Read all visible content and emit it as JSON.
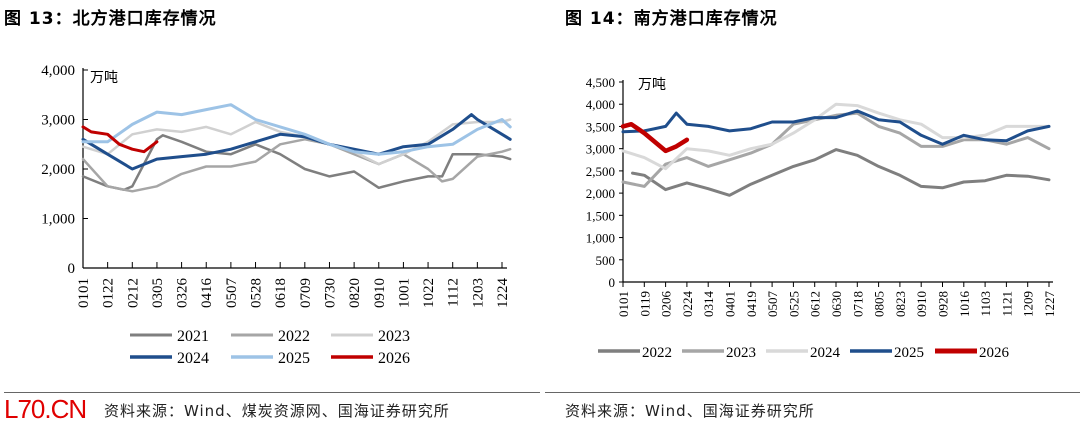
{
  "left": {
    "title": "图 13：北方港口库存情况",
    "source": "资料来源：Wind、煤炭资源网、国海证券研究所",
    "watermark": "L70.CN"
  },
  "right": {
    "title": "图 14：南方港口库存情况",
    "source": "资料来源：Wind、国海证券研究所"
  },
  "chart_data": [
    {
      "type": "line",
      "title": "图 13：北方港口库存情况",
      "unit": "万吨",
      "ylim": [
        0,
        4000
      ],
      "yticks": [
        0,
        1000,
        2000,
        3000,
        4000
      ],
      "ytick_labels": [
        "0",
        "1,000",
        "2,000",
        "3,000",
        "4,000"
      ],
      "xticks": [
        "0101",
        "0122",
        "0212",
        "0305",
        "0326",
        "0416",
        "0507",
        "0528",
        "0618",
        "0709",
        "0730",
        "0820",
        "0910",
        "1001",
        "1022",
        "1112",
        "1203",
        "1224"
      ],
      "grid": false,
      "legend": "bottom",
      "series": [
        {
          "name": "2021",
          "color": "#7f7f7f",
          "x": [
            "0101",
            "0122",
            "0205",
            "0212",
            "0305",
            "0310",
            "0326",
            "0416",
            "0507",
            "0528",
            "0618",
            "0709",
            "0730",
            "0820",
            "0910",
            "1001",
            "1022",
            "1103",
            "1112",
            "1203",
            "1224",
            "1231"
          ],
          "y": [
            1850,
            1650,
            1580,
            1650,
            2600,
            2680,
            2550,
            2350,
            2300,
            2500,
            2300,
            2000,
            1850,
            1950,
            1620,
            1750,
            1850,
            1850,
            2300,
            2300,
            2250,
            2200
          ]
        },
        {
          "name": "2022",
          "color": "#a6a6a6",
          "x": [
            "0101",
            "0122",
            "0212",
            "0305",
            "0326",
            "0416",
            "0507",
            "0528",
            "0618",
            "0709",
            "0730",
            "0820",
            "0910",
            "1001",
            "1022",
            "1103",
            "1112",
            "1203",
            "1224",
            "1231"
          ],
          "y": [
            2200,
            1650,
            1550,
            1650,
            1900,
            2050,
            2050,
            2150,
            2500,
            2600,
            2500,
            2300,
            2100,
            2300,
            2000,
            1750,
            1800,
            2250,
            2350,
            2400
          ]
        },
        {
          "name": "2023",
          "color": "#d0d0d0",
          "x": [
            "0101",
            "0122",
            "0212",
            "0305",
            "0326",
            "0416",
            "0507",
            "0528",
            "0618",
            "0709",
            "0730",
            "0820",
            "0910",
            "1001",
            "1022",
            "1112",
            "1203",
            "1224",
            "1231"
          ],
          "y": [
            2450,
            2300,
            2700,
            2800,
            2750,
            2850,
            2700,
            2950,
            2750,
            2650,
            2500,
            2350,
            2100,
            2300,
            2550,
            2900,
            2950,
            2950,
            3000
          ]
        },
        {
          "name": "2024",
          "color": "#1f4e8c",
          "x": [
            "0101",
            "0122",
            "0212",
            "0305",
            "0326",
            "0416",
            "0507",
            "0528",
            "0618",
            "0709",
            "0730",
            "0820",
            "0910",
            "1001",
            "1022",
            "1112",
            "1128",
            "1203",
            "1224",
            "1231"
          ],
          "y": [
            2600,
            2300,
            2000,
            2200,
            2250,
            2300,
            2400,
            2550,
            2700,
            2650,
            2500,
            2400,
            2300,
            2450,
            2500,
            2800,
            3100,
            3000,
            2700,
            2600
          ]
        },
        {
          "name": "2025",
          "color": "#9dc3e6",
          "x": [
            "0101",
            "0122",
            "0212",
            "0305",
            "0326",
            "0416",
            "0507",
            "0528",
            "0618",
            "0709",
            "0730",
            "0820",
            "0910",
            "1001",
            "1022",
            "1112",
            "1203",
            "1224",
            "1231"
          ],
          "y": [
            2550,
            2550,
            2900,
            3150,
            3100,
            3200,
            3300,
            3000,
            2850,
            2700,
            2500,
            2350,
            2300,
            2350,
            2450,
            2500,
            2800,
            3000,
            2850
          ]
        },
        {
          "name": "2026",
          "color": "#c00000",
          "x": [
            "0101",
            "0108",
            "0122",
            "0201",
            "0212",
            "0222",
            "0305"
          ],
          "y": [
            2850,
            2750,
            2700,
            2500,
            2400,
            2350,
            2550
          ]
        }
      ]
    },
    {
      "type": "line",
      "title": "图 14：南方港口库存情况",
      "unit": "万吨",
      "ylim": [
        0,
        4500
      ],
      "yticks": [
        0,
        500,
        1000,
        1500,
        2000,
        2500,
        3000,
        3500,
        4000,
        4500
      ],
      "ytick_labels": [
        "0",
        "500",
        "1,000",
        "1,500",
        "2,000",
        "2,500",
        "3,000",
        "3,500",
        "4,000",
        "4,500"
      ],
      "xticks": [
        "0101",
        "0119",
        "0206",
        "0224",
        "0314",
        "0401",
        "0419",
        "0507",
        "0525",
        "0612",
        "0630",
        "0718",
        "0805",
        "0823",
        "0910",
        "0928",
        "1016",
        "1103",
        "1121",
        "1209",
        "1227"
      ],
      "grid": false,
      "legend": "bottom",
      "series": [
        {
          "name": "2022",
          "color": "#7f7f7f",
          "x": [
            "0109",
            "0119",
            "0206",
            "0224",
            "0314",
            "0401",
            "0419",
            "0507",
            "0525",
            "0612",
            "0630",
            "0718",
            "0805",
            "0823",
            "0910",
            "0928",
            "1016",
            "1103",
            "1121",
            "1209",
            "1227"
          ],
          "y": [
            2450,
            2400,
            2080,
            2230,
            2100,
            1950,
            2200,
            2400,
            2600,
            2750,
            2980,
            2850,
            2600,
            2400,
            2150,
            2120,
            2250,
            2280,
            2400,
            2380,
            2300
          ]
        },
        {
          "name": "2023",
          "color": "#a6a6a6",
          "x": [
            "0101",
            "0119",
            "0206",
            "0224",
            "0314",
            "0401",
            "0419",
            "0507",
            "0525",
            "0612",
            "0630",
            "0718",
            "0805",
            "0823",
            "0910",
            "0928",
            "1016",
            "1103",
            "1121",
            "1209",
            "1227"
          ],
          "y": [
            2250,
            2150,
            2650,
            2800,
            2600,
            2750,
            2900,
            3100,
            3550,
            3650,
            3750,
            3800,
            3500,
            3350,
            3050,
            3050,
            3200,
            3200,
            3100,
            3250,
            3000
          ]
        },
        {
          "name": "2024",
          "color": "#d9d9d9",
          "x": [
            "0101",
            "0119",
            "0206",
            "0224",
            "0314",
            "0401",
            "0419",
            "0507",
            "0525",
            "0612",
            "0630",
            "0718",
            "0805",
            "0823",
            "0910",
            "0928",
            "1016",
            "1103",
            "1121",
            "1209",
            "1227"
          ],
          "y": [
            2950,
            2800,
            2550,
            3000,
            2950,
            2850,
            3000,
            3100,
            3350,
            3650,
            4000,
            3970,
            3800,
            3650,
            3550,
            3250,
            3250,
            3300,
            3500,
            3500,
            3500
          ]
        },
        {
          "name": "2025",
          "color": "#1f4e8c",
          "x": [
            "0101",
            "0119",
            "0206",
            "0215",
            "0224",
            "0314",
            "0401",
            "0419",
            "0507",
            "0525",
            "0612",
            "0630",
            "0718",
            "0805",
            "0823",
            "0910",
            "0928",
            "1016",
            "1103",
            "1121",
            "1209",
            "1227"
          ],
          "y": [
            3380,
            3400,
            3500,
            3800,
            3550,
            3500,
            3400,
            3450,
            3600,
            3600,
            3700,
            3700,
            3850,
            3650,
            3600,
            3300,
            3100,
            3300,
            3200,
            3180,
            3400,
            3500
          ]
        },
        {
          "name": "2026",
          "color": "#c00000",
          "x": [
            "0101",
            "0108",
            "0119",
            "0206",
            "0215",
            "0224"
          ],
          "y": [
            3500,
            3550,
            3350,
            2950,
            3050,
            3200
          ]
        }
      ]
    }
  ]
}
